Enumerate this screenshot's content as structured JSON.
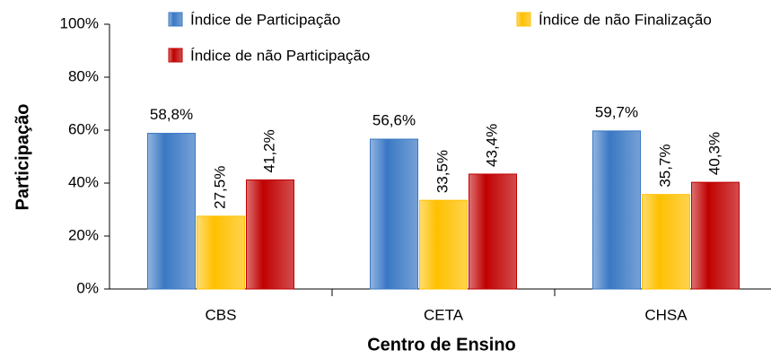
{
  "chart_data": {
    "type": "bar",
    "y_label": "Participação",
    "x_label": "Centro de Ensino",
    "categories": [
      "CBS",
      "CETA",
      "CHSA"
    ],
    "series": [
      {
        "name": "Índice de Participação",
        "color": "#3a78c4",
        "values": [
          58.8,
          56.6,
          59.7
        ],
        "value_labels": [
          "58,8%",
          "56,6%",
          "59,7%"
        ]
      },
      {
        "name": "Índice de não Finalização",
        "color": "#ffc000",
        "values": [
          27.5,
          33.5,
          35.7
        ],
        "value_labels": [
          "27,5%",
          "33,5%",
          "35,7%"
        ]
      },
      {
        "name": "Índice de não Participação",
        "color": "#c00000",
        "values": [
          41.2,
          43.4,
          40.3
        ],
        "value_labels": [
          "41,2%",
          "43,4%",
          "40,3%"
        ]
      }
    ],
    "ylim": [
      0,
      100
    ],
    "yticks": [
      {
        "value": 0,
        "label": "0%"
      },
      {
        "value": 20,
        "label": "20%"
      },
      {
        "value": 40,
        "label": "40%"
      },
      {
        "value": 60,
        "label": "60%"
      },
      {
        "value": 80,
        "label": "80%"
      },
      {
        "value": 100,
        "label": "100%"
      }
    ],
    "legend": "top"
  }
}
